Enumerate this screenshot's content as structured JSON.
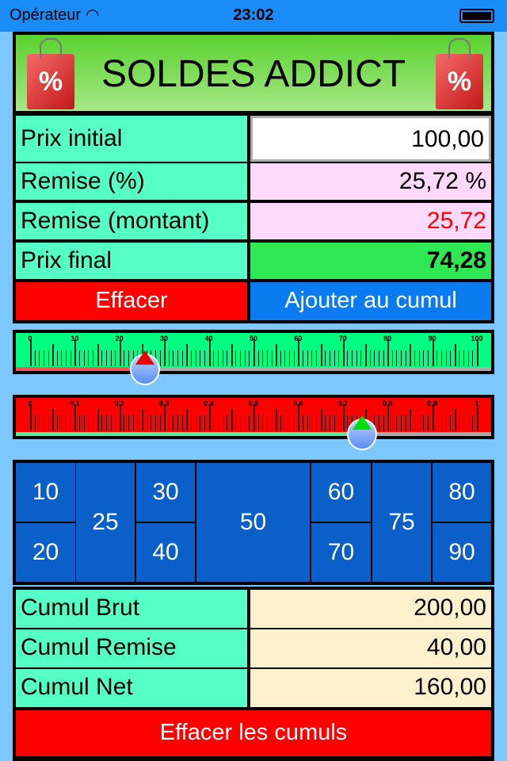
{
  "status": {
    "carrier": "Opérateur",
    "time": "23:02"
  },
  "header": {
    "title": "SOLDES ADDICT",
    "bag_left": "%",
    "bag_right": "%"
  },
  "calc": {
    "rows": [
      {
        "label": "Prix initial",
        "value": "100,00"
      },
      {
        "label": "Remise (%)",
        "value": "25,72 %"
      },
      {
        "label": "Remise (montant)",
        "value": "25,72"
      },
      {
        "label": "Prix final",
        "value": "74,28"
      }
    ],
    "clear_label": "Effacer",
    "add_label": "Ajouter au cumul"
  },
  "slider_percent": {
    "ticks": [
      "0",
      "10",
      "20",
      "30",
      "40",
      "50",
      "60",
      "70",
      "80",
      "90",
      "100"
    ],
    "value": 25.72
  },
  "slider_ratio": {
    "ticks": [
      "0",
      "0.1",
      "0.2",
      "0.3",
      "0.4",
      "0.5",
      "0.6",
      "0.7",
      "0.8",
      "0.9",
      "1"
    ],
    "value": 0.7428
  },
  "presets": [
    "10",
    "20",
    "25",
    "30",
    "40",
    "50",
    "60",
    "70",
    "75",
    "80",
    "90"
  ],
  "cumul": {
    "rows": [
      {
        "label": "Cumul Brut",
        "value": "200,00"
      },
      {
        "label": "Cumul Remise",
        "value": "40,00"
      },
      {
        "label": "Cumul Net",
        "value": "160,00"
      }
    ],
    "clear_label": "Effacer les cumuls"
  },
  "colors": {
    "status_bar": "#1a8cf8",
    "background": "#7cc8fe",
    "label_cell": "#55ffc5",
    "clear": "#ff0000",
    "add": "#0a7cf0",
    "preset": "#0a5fc9"
  }
}
